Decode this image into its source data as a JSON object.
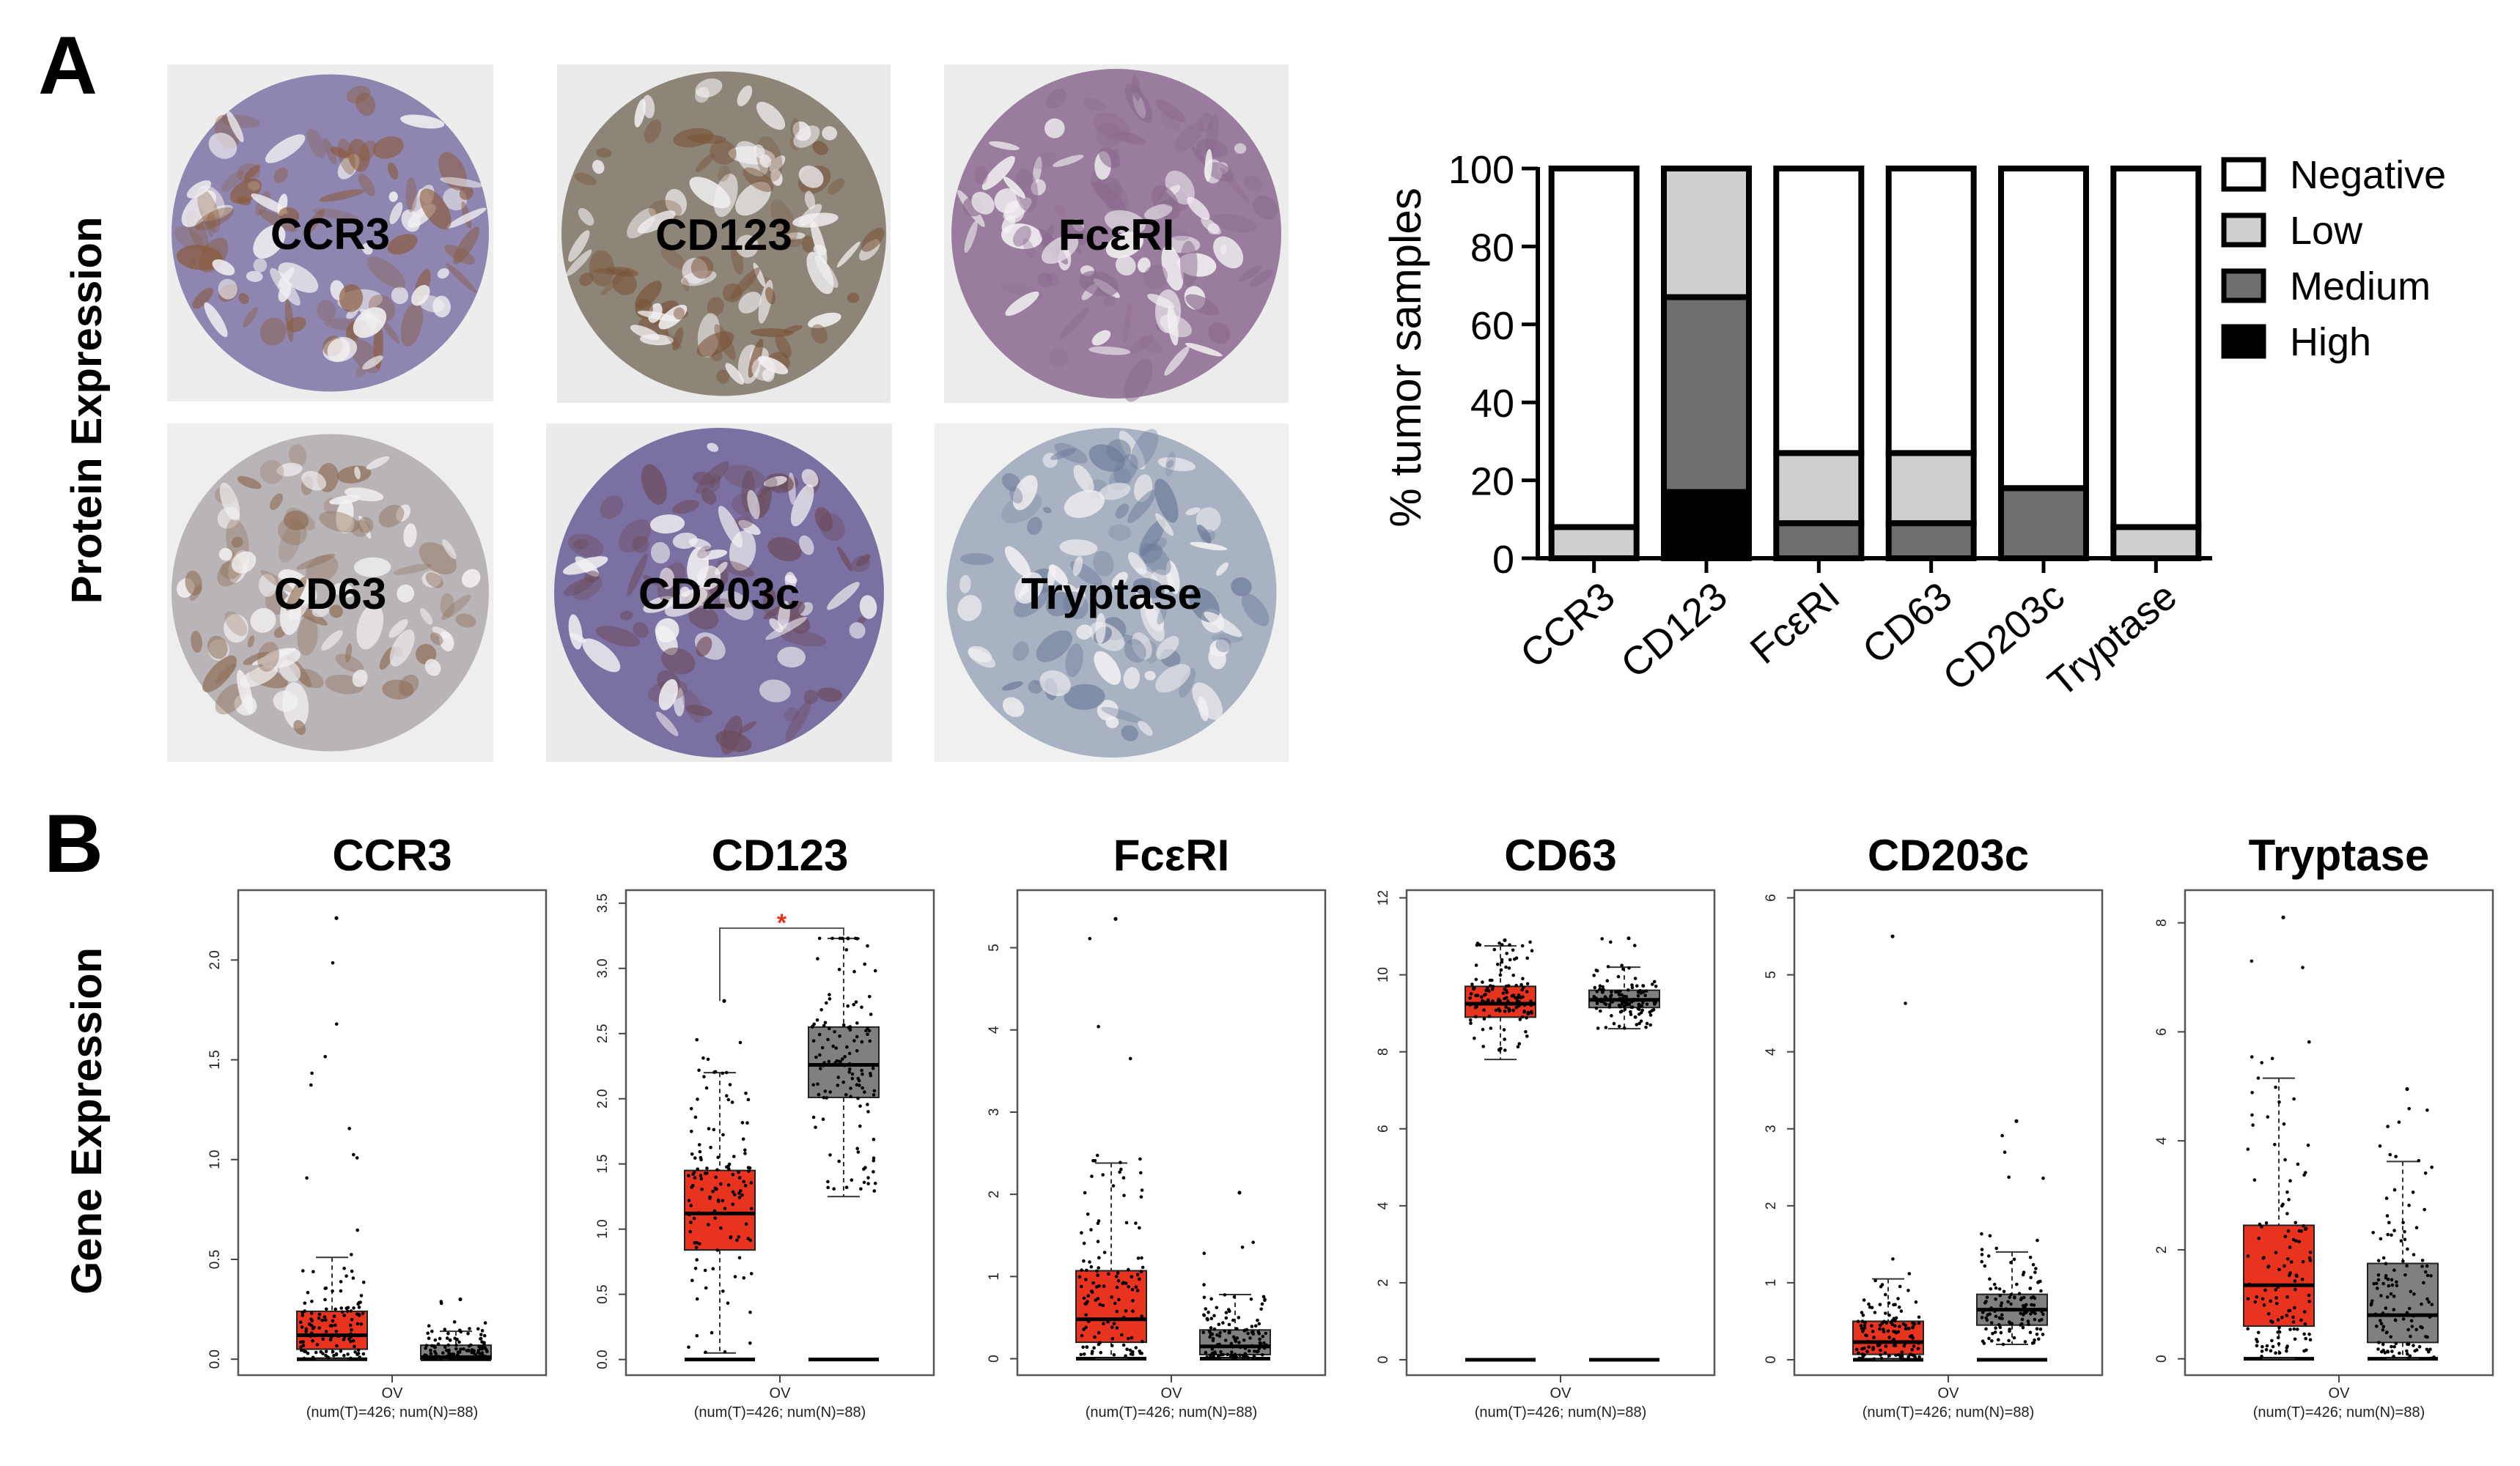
{
  "panel_a": {
    "letter": "A",
    "side_label": "Protein Expression",
    "tiles": [
      {
        "label": "CCR3",
        "tissue_color": "#8e86b0",
        "stain_color": "#8a5a3a",
        "bg_color": "#eeeded"
      },
      {
        "label": "CD123",
        "tissue_color": "#8d8578",
        "stain_color": "#7a5238",
        "bg_color": "#ebeaea"
      },
      {
        "label": "FcεRI",
        "tissue_color": "#9a7d9e",
        "stain_color": "#8a6a8e",
        "bg_color": "#edecec"
      },
      {
        "label": "CD63",
        "tissue_color": "#b9b4b8",
        "stain_color": "#8c6a50",
        "bg_color": "#efeeee"
      },
      {
        "label": "CD203c",
        "tissue_color": "#7b70a2",
        "stain_color": "#6b4a58",
        "bg_color": "#ebebeb"
      },
      {
        "label": "Tryptase",
        "tissue_color": "#a9b2c2",
        "stain_color": "#6b7a98",
        "bg_color": "#f0f0f0"
      }
    ]
  },
  "chart_data": [
    {
      "id": "stacked",
      "type": "bar",
      "stacked": true,
      "title": "",
      "xlabel": "",
      "ylabel": "% tumor samples",
      "ylim": [
        0,
        100
      ],
      "yticks": [
        "0",
        "20",
        "40",
        "60",
        "80",
        "100"
      ],
      "categories": [
        "CCR3",
        "CD123",
        "FcεRI",
        "CD63",
        "CD203c",
        "Tryptase"
      ],
      "series": [
        {
          "name": "High",
          "color": "#000000",
          "values": [
            0,
            17,
            0,
            0,
            0,
            0
          ]
        },
        {
          "name": "Medium",
          "color": "#6e6e6e",
          "values": [
            0,
            50,
            9,
            9,
            18,
            0
          ]
        },
        {
          "name": "Low",
          "color": "#cfcfcf",
          "values": [
            8,
            33,
            18,
            18,
            0,
            8
          ]
        },
        {
          "name": "Negative",
          "color": "#ffffff",
          "values": [
            92,
            0,
            73,
            73,
            82,
            92
          ]
        }
      ],
      "legend": [
        "Negative",
        "Low",
        "Medium",
        "High"
      ],
      "legend_position": "top-right"
    },
    {
      "id": "boxplots",
      "type": "box",
      "panel_letter": "B",
      "side_label": "Gene Expression",
      "tumor_color": "#e8331e",
      "normal_color": "#808080",
      "significance_color": "#e8331e",
      "plots": [
        {
          "title": "CCR3",
          "yticks": [
            "0.0",
            "0.5",
            "1.0",
            "1.5",
            "2.0"
          ],
          "ylim": [
            -0.08,
            2.35
          ],
          "tumor": {
            "q1": 0.05,
            "median": 0.12,
            "q3": 0.24,
            "whisker_low": 0.0,
            "whisker_high": 0.51,
            "max": 2.21
          },
          "normal": {
            "q1": 0.0,
            "median": 0.01,
            "q3": 0.07,
            "whisker_low": 0.0,
            "whisker_high": 0.14,
            "max": 0.3
          },
          "significant": false,
          "xlabel": "OV",
          "sample_label": "(num(T)=426; num(N)=88)"
        },
        {
          "title": "CD123",
          "yticks": [
            "0.0",
            "0.5",
            "1.0",
            "1.5",
            "2.0",
            "2.5",
            "3.0",
            "3.5"
          ],
          "ylim": [
            -0.12,
            3.6
          ],
          "tumor": {
            "q1": 0.84,
            "median": 1.12,
            "q3": 1.45,
            "whisker_low": 0.05,
            "whisker_high": 2.2,
            "max": 2.75
          },
          "normal": {
            "q1": 2.01,
            "median": 2.26,
            "q3": 2.55,
            "whisker_low": 1.25,
            "whisker_high": 3.23,
            "max": 3.23
          },
          "significant": true,
          "significance_label": "*",
          "xlabel": "OV",
          "sample_label": "(num(T)=426; num(N)=88)"
        },
        {
          "title": "FcεRI",
          "yticks": [
            "0",
            "1",
            "2",
            "3",
            "4",
            "5"
          ],
          "ylim": [
            -0.2,
            5.7
          ],
          "tumor": {
            "q1": 0.2,
            "median": 0.48,
            "q3": 1.07,
            "whisker_low": 0.0,
            "whisker_high": 2.38,
            "max": 5.35
          },
          "normal": {
            "q1": 0.05,
            "median": 0.15,
            "q3": 0.35,
            "whisker_low": 0.0,
            "whisker_high": 0.78,
            "max": 2.02
          },
          "significant": false,
          "xlabel": "OV",
          "sample_label": "(num(T)=426; num(N)=88)"
        },
        {
          "title": "CD63",
          "yticks": [
            "0",
            "2",
            "4",
            "6",
            "8",
            "10",
            "12"
          ],
          "ylim": [
            -0.4,
            12.2
          ],
          "tumor": {
            "q1": 8.9,
            "median": 9.25,
            "q3": 9.7,
            "whisker_low": 7.8,
            "whisker_high": 10.75,
            "max": 10.9
          },
          "normal": {
            "q1": 9.15,
            "median": 9.35,
            "q3": 9.6,
            "whisker_low": 8.6,
            "whisker_high": 10.2,
            "max": 10.95
          },
          "significant": false,
          "xlabel": "OV",
          "sample_label": "(num(T)=426; num(N)=88)"
        },
        {
          "title": "CD203c",
          "yticks": [
            "0",
            "1",
            "2",
            "3",
            "4",
            "5",
            "6"
          ],
          "ylim": [
            -0.2,
            6.1
          ],
          "tumor": {
            "q1": 0.07,
            "median": 0.23,
            "q3": 0.5,
            "whisker_low": 0.0,
            "whisker_high": 1.05,
            "max": 5.5
          },
          "normal": {
            "q1": 0.45,
            "median": 0.65,
            "q3": 0.85,
            "whisker_low": 0.2,
            "whisker_high": 1.4,
            "max": 3.1
          },
          "significant": false,
          "xlabel": "OV",
          "sample_label": "(num(T)=426; num(N)=88)"
        },
        {
          "title": "Tryptase",
          "yticks": [
            "0",
            "2",
            "4",
            "6",
            "8"
          ],
          "ylim": [
            -0.3,
            8.6
          ],
          "tumor": {
            "q1": 0.6,
            "median": 1.35,
            "q3": 2.45,
            "whisker_low": 0.0,
            "whisker_high": 5.15,
            "max": 8.1
          },
          "normal": {
            "q1": 0.3,
            "median": 0.8,
            "q3": 1.75,
            "whisker_low": 0.0,
            "whisker_high": 3.62,
            "max": 4.95
          },
          "significant": false,
          "xlabel": "OV",
          "sample_label": "(num(T)=426; num(N)=88)"
        }
      ]
    }
  ]
}
